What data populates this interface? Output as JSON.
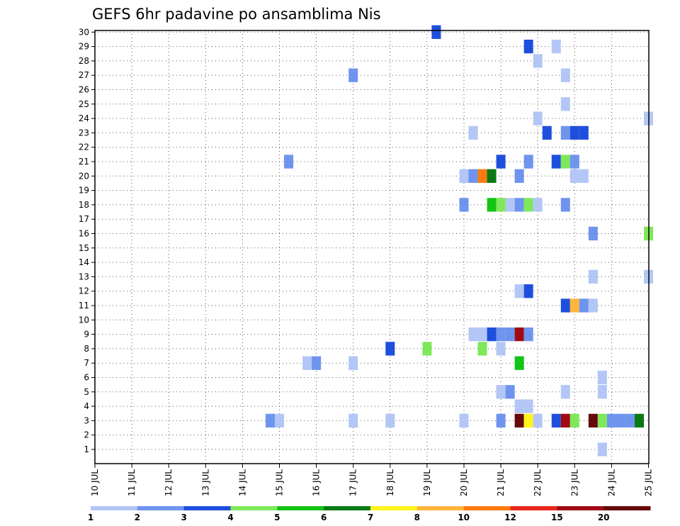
{
  "chart_data": {
    "type": "heatmap",
    "title": "GEFS 6hr padavine po ansamblima Nis",
    "xlabel": "",
    "ylabel": "",
    "x_tick_labels": [
      "10 JUL",
      "11 JUL",
      "12 JUL",
      "13 JUL",
      "14 JUL",
      "15 JUL",
      "16 JUL",
      "17 JUL",
      "18 JUL",
      "19 JUL",
      "20 JUL",
      "21 JUL",
      "22 JUL",
      "23 JUL",
      "24 JUL",
      "25 JUL"
    ],
    "y_tick_labels": [
      "1",
      "2",
      "3",
      "4",
      "5",
      "6",
      "7",
      "8",
      "9",
      "10",
      "11",
      "12",
      "13",
      "14",
      "15",
      "16",
      "17",
      "18",
      "19",
      "20",
      "21",
      "22",
      "23",
      "24",
      "25",
      "26",
      "27",
      "28",
      "29",
      "30"
    ],
    "x_range": [
      0,
      15
    ],
    "y_range": [
      0,
      30
    ],
    "grid": true,
    "colorbar": {
      "colors": [
        "#b3c6f5",
        "#6e94ee",
        "#1e4fdc",
        "#7ee85a",
        "#14c414",
        "#0a7a14",
        "#fff41a",
        "#ffb43c",
        "#ff7a10",
        "#e8281a",
        "#a00a14",
        "#640a0a"
      ],
      "labels": [
        "1",
        "2",
        "3",
        "4",
        "5",
        "6",
        "7",
        "8",
        "10",
        "12",
        "15",
        "20"
      ]
    },
    "cells": [
      {
        "x": 9.25,
        "y": 30,
        "level": 3
      },
      {
        "x": 11.75,
        "y": 29,
        "level": 3
      },
      {
        "x": 12.5,
        "y": 29,
        "level": 1
      },
      {
        "x": 12,
        "y": 28,
        "level": 1
      },
      {
        "x": 7,
        "y": 27,
        "level": 2
      },
      {
        "x": 12.75,
        "y": 27,
        "level": 1
      },
      {
        "x": 12.75,
        "y": 25,
        "level": 1
      },
      {
        "x": 12,
        "y": 24,
        "level": 1
      },
      {
        "x": 15,
        "y": 24,
        "level": 1
      },
      {
        "x": 10.25,
        "y": 23,
        "level": 1
      },
      {
        "x": 12.25,
        "y": 23,
        "level": 3
      },
      {
        "x": 12.75,
        "y": 23,
        "level": 2
      },
      {
        "x": 13,
        "y": 23,
        "level": 3
      },
      {
        "x": 13.25,
        "y": 23,
        "level": 3
      },
      {
        "x": 5.25,
        "y": 21,
        "level": 2
      },
      {
        "x": 11,
        "y": 21,
        "level": 3
      },
      {
        "x": 11.75,
        "y": 21,
        "level": 2
      },
      {
        "x": 12.5,
        "y": 21,
        "level": 3
      },
      {
        "x": 12.75,
        "y": 21,
        "level": 4
      },
      {
        "x": 13,
        "y": 21,
        "level": 2
      },
      {
        "x": 10,
        "y": 20,
        "level": 1
      },
      {
        "x": 10.25,
        "y": 20,
        "level": 2
      },
      {
        "x": 10.5,
        "y": 20,
        "level": 9
      },
      {
        "x": 10.75,
        "y": 20,
        "level": 6
      },
      {
        "x": 11.5,
        "y": 20,
        "level": 2
      },
      {
        "x": 13,
        "y": 20,
        "level": 1
      },
      {
        "x": 13.25,
        "y": 20,
        "level": 1
      },
      {
        "x": 10,
        "y": 18,
        "level": 2
      },
      {
        "x": 10.75,
        "y": 18,
        "level": 5
      },
      {
        "x": 11,
        "y": 18,
        "level": 4
      },
      {
        "x": 11.25,
        "y": 18,
        "level": 1
      },
      {
        "x": 11.5,
        "y": 18,
        "level": 2
      },
      {
        "x": 11.75,
        "y": 18,
        "level": 4
      },
      {
        "x": 12,
        "y": 18,
        "level": 1
      },
      {
        "x": 12.75,
        "y": 18,
        "level": 2
      },
      {
        "x": 13.5,
        "y": 16,
        "level": 2
      },
      {
        "x": 15,
        "y": 16,
        "level": 4
      },
      {
        "x": 13.5,
        "y": 13,
        "level": 1
      },
      {
        "x": 15,
        "y": 13,
        "level": 1
      },
      {
        "x": 11.5,
        "y": 12,
        "level": 1
      },
      {
        "x": 11.75,
        "y": 12,
        "level": 3
      },
      {
        "x": 12.75,
        "y": 11,
        "level": 3
      },
      {
        "x": 13,
        "y": 11,
        "level": 8
      },
      {
        "x": 13.25,
        "y": 11,
        "level": 2
      },
      {
        "x": 13.5,
        "y": 11,
        "level": 1
      },
      {
        "x": 10.25,
        "y": 9,
        "level": 1
      },
      {
        "x": 10.5,
        "y": 9,
        "level": 1
      },
      {
        "x": 10.75,
        "y": 9,
        "level": 3
      },
      {
        "x": 11,
        "y": 9,
        "level": 2
      },
      {
        "x": 11.25,
        "y": 9,
        "level": 2
      },
      {
        "x": 11.5,
        "y": 9,
        "level": 11
      },
      {
        "x": 11.75,
        "y": 9,
        "level": 2
      },
      {
        "x": 8,
        "y": 8,
        "level": 3
      },
      {
        "x": 9,
        "y": 8,
        "level": 4
      },
      {
        "x": 10.5,
        "y": 8,
        "level": 4
      },
      {
        "x": 11,
        "y": 8,
        "level": 1
      },
      {
        "x": 5.75,
        "y": 7,
        "level": 1
      },
      {
        "x": 6,
        "y": 7,
        "level": 2
      },
      {
        "x": 7,
        "y": 7,
        "level": 1
      },
      {
        "x": 11.5,
        "y": 7,
        "level": 5
      },
      {
        "x": 13.75,
        "y": 6,
        "level": 1
      },
      {
        "x": 11,
        "y": 5,
        "level": 1
      },
      {
        "x": 11.25,
        "y": 5,
        "level": 2
      },
      {
        "x": 12.75,
        "y": 5,
        "level": 1
      },
      {
        "x": 13.75,
        "y": 5,
        "level": 1
      },
      {
        "x": 11.5,
        "y": 4,
        "level": 1
      },
      {
        "x": 11.75,
        "y": 4,
        "level": 1
      },
      {
        "x": 4.75,
        "y": 3,
        "level": 2
      },
      {
        "x": 5,
        "y": 3,
        "level": 1
      },
      {
        "x": 7,
        "y": 3,
        "level": 1
      },
      {
        "x": 8,
        "y": 3,
        "level": 1
      },
      {
        "x": 10,
        "y": 3,
        "level": 1
      },
      {
        "x": 11,
        "y": 3,
        "level": 2
      },
      {
        "x": 11.5,
        "y": 3,
        "level": 12
      },
      {
        "x": 11.75,
        "y": 3,
        "level": 7
      },
      {
        "x": 12,
        "y": 3,
        "level": 1
      },
      {
        "x": 12.5,
        "y": 3,
        "level": 3
      },
      {
        "x": 12.75,
        "y": 3,
        "level": 11
      },
      {
        "x": 13,
        "y": 3,
        "level": 4
      },
      {
        "x": 13.5,
        "y": 3,
        "level": 12
      },
      {
        "x": 13.75,
        "y": 3,
        "level": 4
      },
      {
        "x": 14,
        "y": 3,
        "level": 2
      },
      {
        "x": 14.25,
        "y": 3,
        "level": 2
      },
      {
        "x": 14.5,
        "y": 3,
        "level": 2
      },
      {
        "x": 14.75,
        "y": 3,
        "level": 6
      },
      {
        "x": 13.75,
        "y": 1,
        "level": 1
      }
    ]
  }
}
